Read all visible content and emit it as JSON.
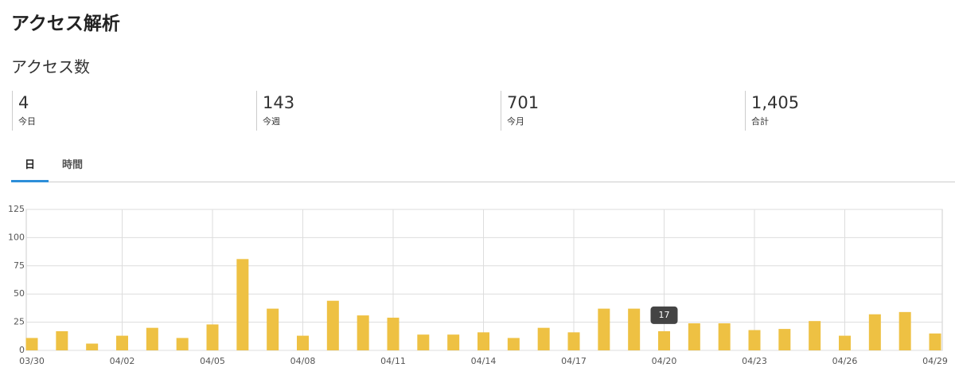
{
  "header": {
    "title": "アクセス解析"
  },
  "section": {
    "title": "アクセス数"
  },
  "stats": [
    {
      "value": "4",
      "label": "今日"
    },
    {
      "value": "143",
      "label": "今週"
    },
    {
      "value": "701",
      "label": "今月"
    },
    {
      "value": "1,405",
      "label": "合計"
    }
  ],
  "tabs": [
    "日",
    "時間"
  ],
  "chart_data": {
    "type": "bar",
    "categories": [
      "03/30",
      null,
      null,
      "04/02",
      null,
      null,
      "04/05",
      null,
      null,
      "04/08",
      null,
      null,
      "04/11",
      null,
      null,
      "04/14",
      null,
      null,
      "04/17",
      null,
      null,
      "04/20",
      null,
      null,
      "04/23",
      null,
      null,
      "04/26",
      null,
      null,
      "04/29"
    ],
    "values": [
      11,
      17,
      6,
      13,
      20,
      11,
      23,
      81,
      37,
      13,
      44,
      31,
      29,
      14,
      14,
      16,
      11,
      20,
      16,
      37,
      37,
      17,
      24,
      24,
      18,
      19,
      26,
      13,
      32,
      34,
      15
    ],
    "color": "#eec143",
    "ylim": [
      0,
      125
    ],
    "yticks": [
      0,
      25,
      50,
      75,
      100,
      125
    ],
    "grid": true,
    "tooltip_index": 21
  }
}
